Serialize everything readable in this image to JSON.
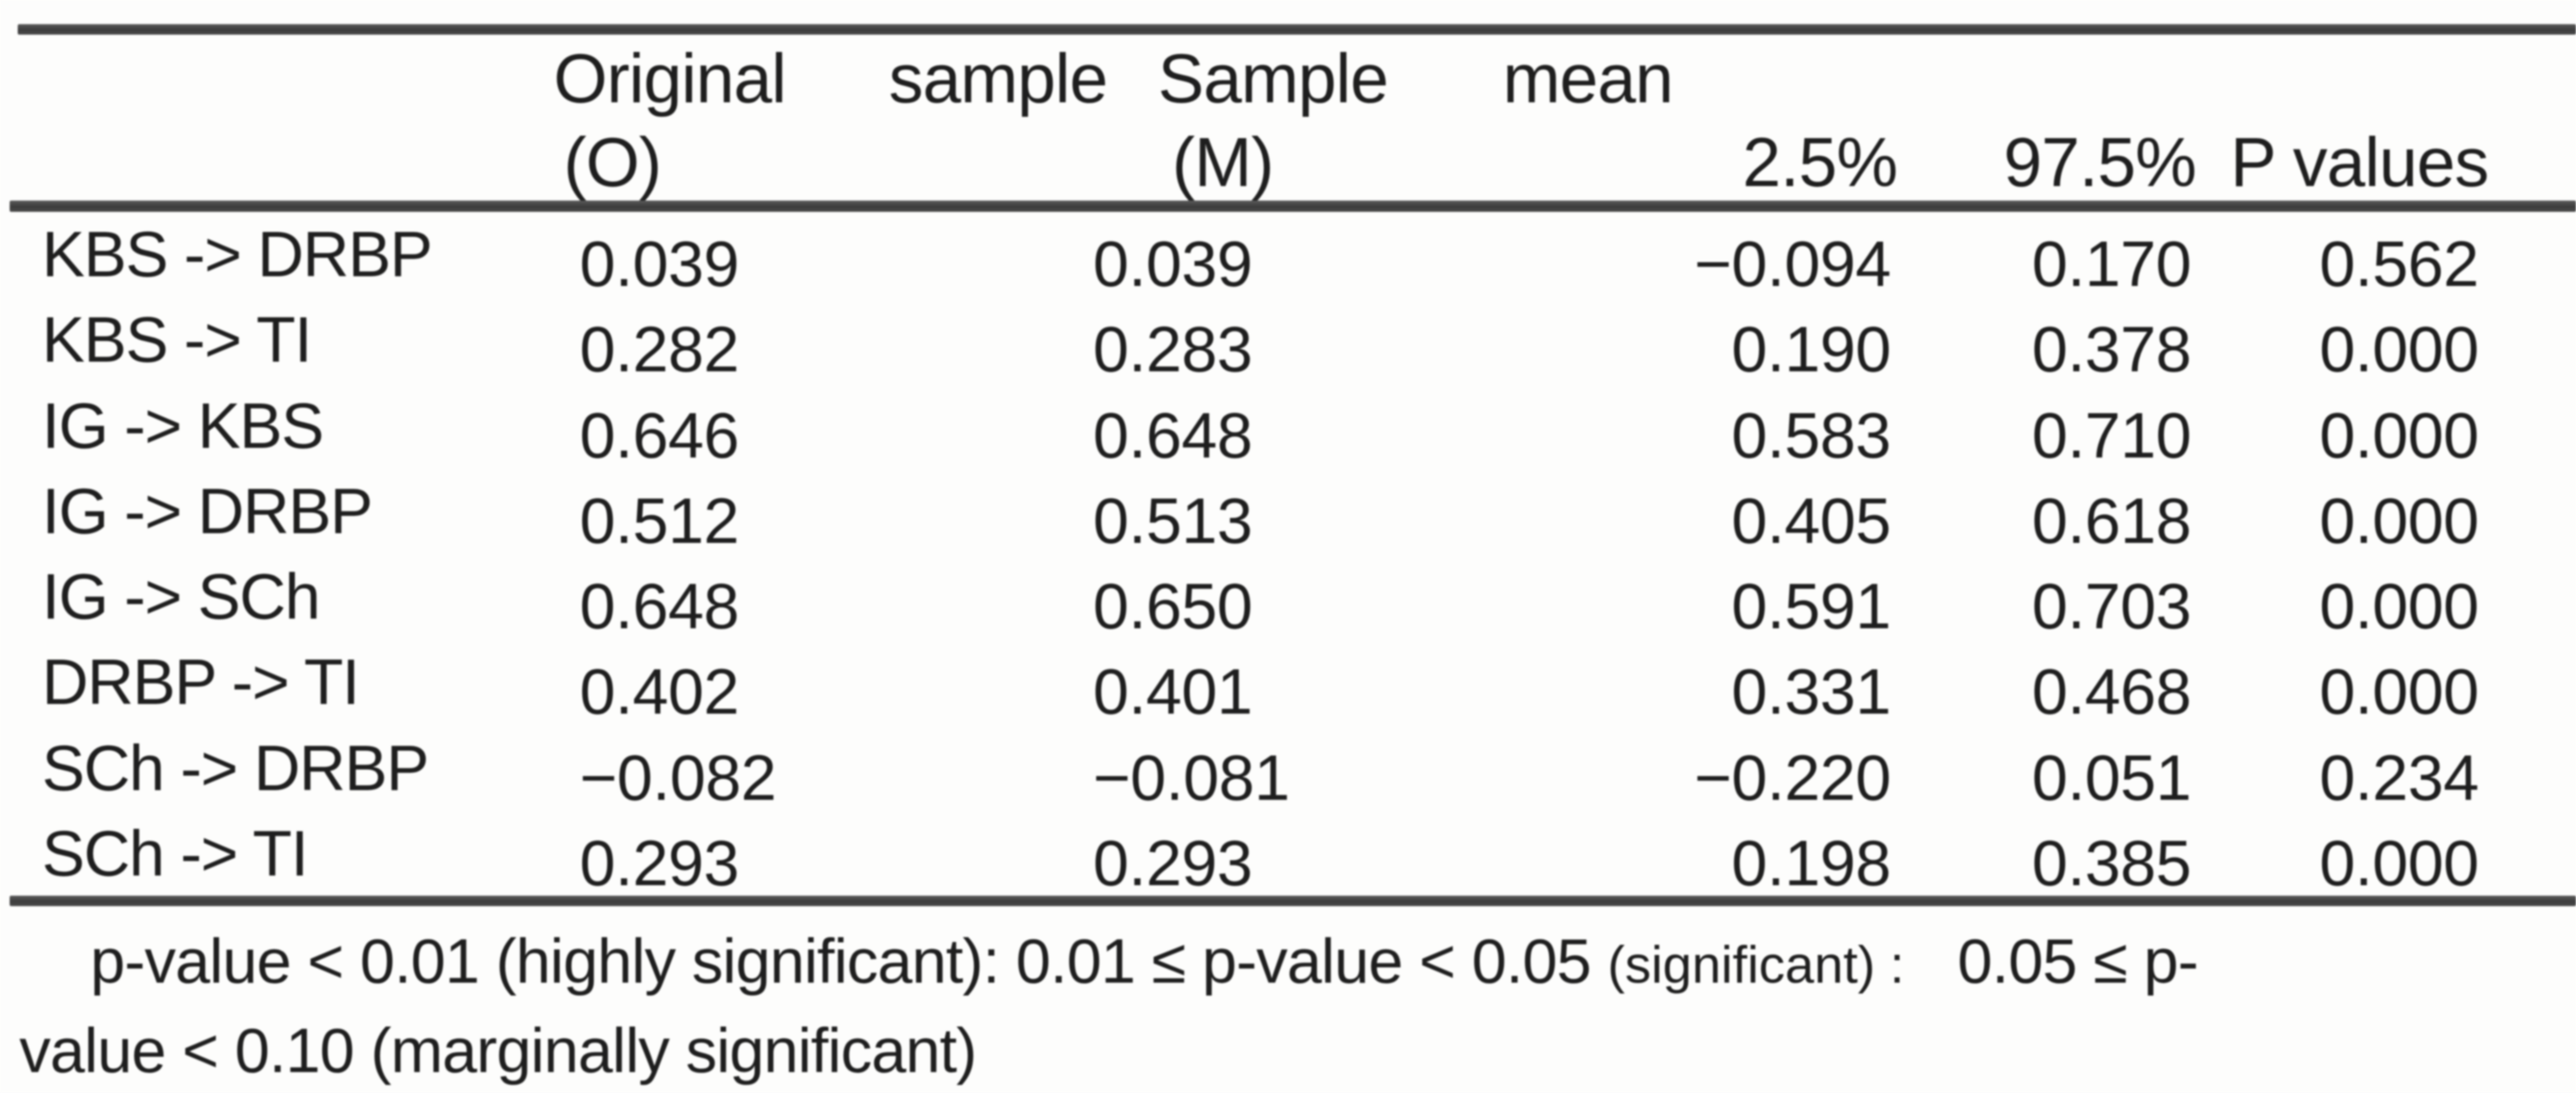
{
  "page": {
    "background": "#fdfdfc",
    "text_color": "#1e1e1e",
    "rule_color": "#434343"
  },
  "table": {
    "header": {
      "line1": [
        "Original",
        "sample",
        "Sample",
        "mean"
      ],
      "line2": {
        "o": "(O)",
        "m": "(M)",
        "p25": "2.5%",
        "p975": "97.5%",
        "pvalues": "P values"
      }
    },
    "rows": [
      {
        "path": "KBS -> DRBP",
        "original_o": "0.039",
        "mean_m": "0.039",
        "ci25": "−0.094",
        "ci975": "0.170",
        "p": "0.562"
      },
      {
        "path": "KBS -> TI",
        "original_o": "0.282",
        "mean_m": "0.283",
        "ci25": "0.190",
        "ci975": "0.378",
        "p": "0.000"
      },
      {
        "path": "IG -> KBS",
        "original_o": "0.646",
        "mean_m": "0.648",
        "ci25": "0.583",
        "ci975": "0.710",
        "p": "0.000"
      },
      {
        "path": "IG -> DRBP",
        "original_o": "0.512",
        "mean_m": "0.513",
        "ci25": "0.405",
        "ci975": "0.618",
        "p": "0.000"
      },
      {
        "path": "IG -> SCh",
        "original_o": "0.648",
        "mean_m": "0.650",
        "ci25": "0.591",
        "ci975": "0.703",
        "p": "0.000"
      },
      {
        "path": "DRBP -> TI",
        "original_o": "0.402",
        "mean_m": "0.401",
        "ci25": "0.331",
        "ci975": "0.468",
        "p": "0.000"
      },
      {
        "path": "SCh -> DRBP",
        "original_o": "−0.082",
        "mean_m": "−0.081",
        "ci25": "−0.220",
        "ci975": "0.051",
        "p": "0.234"
      },
      {
        "path": "SCh -> TI",
        "original_o": "0.293",
        "mean_m": "0.293",
        "ci25": "0.198",
        "ci975": "0.385",
        "p": "0.000"
      }
    ],
    "footnote": {
      "part1": "p-value < 0.01 (highly significant): 0.01 ≤ p-value < 0.05 ",
      "part2": "(significant) :",
      "part3": "0.05 ≤ p-",
      "line2": "value < 0.10 (marginally significant)"
    }
  }
}
